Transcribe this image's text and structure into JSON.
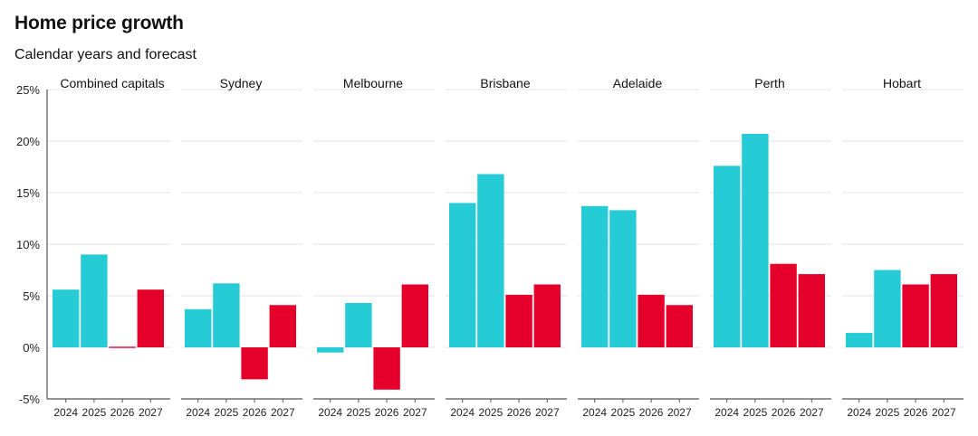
{
  "title": "Home price growth",
  "subtitle": "Calendar years and forecast",
  "colors": {
    "actual": "#25ccd5",
    "forecast": "#e4002b",
    "grid": "#e3e3e3",
    "axis": "#555555",
    "text": "#111111"
  },
  "chart_data": {
    "type": "bar",
    "title": "Home price growth",
    "subtitle": "Calendar years and forecast",
    "xlabel": "",
    "ylabel": "",
    "categories": [
      "2024",
      "2025",
      "2026",
      "2027"
    ],
    "y_ticks": [
      "25%",
      "20%",
      "15%",
      "10%",
      "5%",
      "0%",
      "-5%"
    ],
    "ylim": [
      -5,
      25
    ],
    "grid": true,
    "color_encoding": {
      "actual_color": "#25ccd5",
      "actual_years": [
        "2024",
        "2025"
      ],
      "forecast_color": "#e4002b",
      "forecast_years": [
        "2026",
        "2027"
      ]
    },
    "panels": [
      {
        "name": "Combined capitals",
        "values": [
          5.6,
          9.0,
          0.1,
          5.6
        ]
      },
      {
        "name": "Sydney",
        "values": [
          3.7,
          6.2,
          -3.1,
          4.1
        ]
      },
      {
        "name": "Melbourne",
        "values": [
          -0.5,
          4.3,
          -4.1,
          6.1
        ]
      },
      {
        "name": "Brisbane",
        "values": [
          14.0,
          16.8,
          5.1,
          6.1
        ]
      },
      {
        "name": "Adelaide",
        "values": [
          13.7,
          13.3,
          5.1,
          4.1
        ]
      },
      {
        "name": "Perth",
        "values": [
          17.6,
          20.7,
          8.1,
          7.1
        ]
      },
      {
        "name": "Hobart",
        "values": [
          1.4,
          7.5,
          6.1,
          7.1
        ]
      }
    ]
  }
}
